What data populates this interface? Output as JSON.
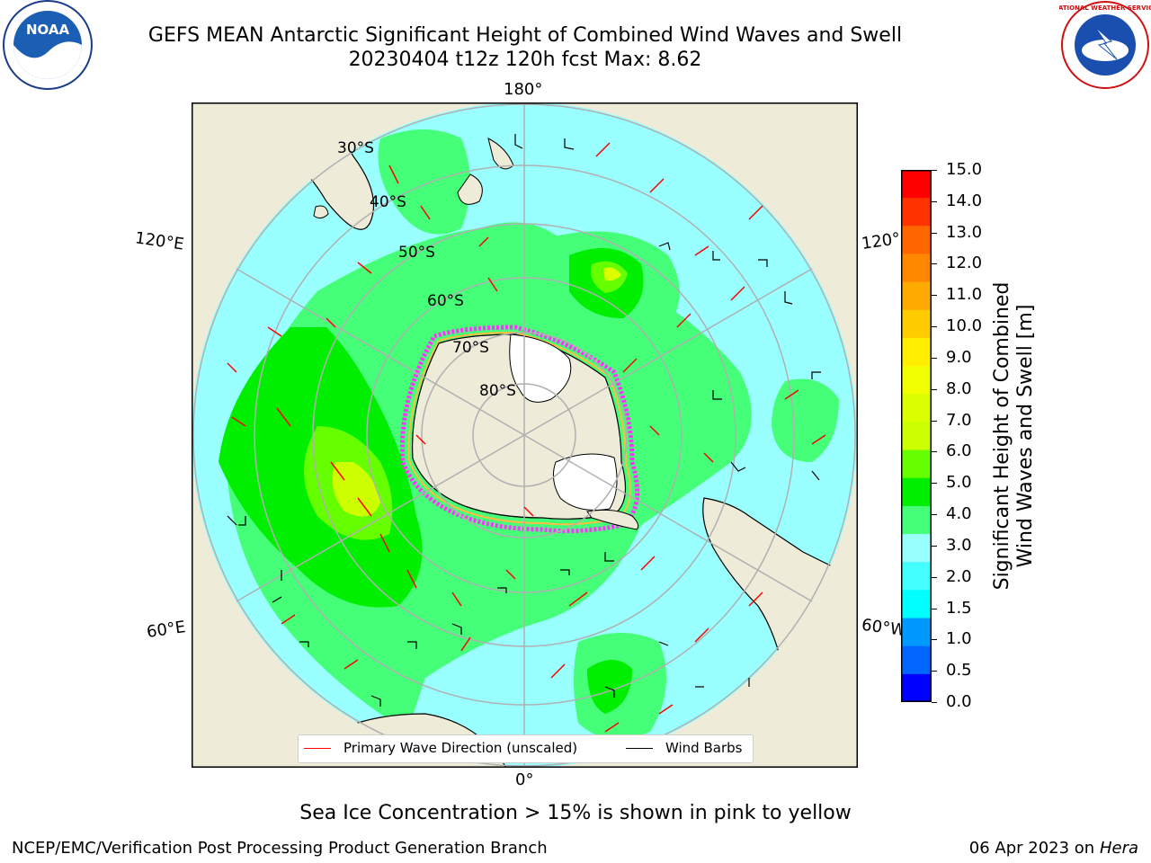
{
  "header": {
    "title": "GEFS MEAN Antarctic Significant Height of Combined Wind Waves and Swell",
    "subtitle": "20230404 t12z 120h fcst   Max: 8.62"
  },
  "map": {
    "projection": "south-polar-stereographic",
    "lon_labels": {
      "top": "180°",
      "bottom": "0°",
      "upper_left": "120°E",
      "upper_right": "120°",
      "lower_left": "60°E",
      "lower_right": "60°W"
    },
    "lat_labels": [
      "30°S",
      "40°S",
      "50°S",
      "60°S",
      "70°S",
      "80°S"
    ],
    "colors": {
      "land": "#eeebd9",
      "ice_shelf": "#ffffff",
      "grid": "#b0b0b0",
      "wave_arrow": "#ff0000",
      "wind_barb": "#000000",
      "sea_ice": "#ff33ff"
    }
  },
  "legend": {
    "primary_wave": "Primary Wave Direction (unscaled)",
    "wind_barbs": "Wind Barbs"
  },
  "colorbar": {
    "label_line1": "Significant Height of Combined",
    "label_line2": "Wind Waves and Swell [m]",
    "ticks": [
      "15.0",
      "14.0",
      "13.0",
      "12.0",
      "11.0",
      "10.0",
      "9.0",
      "8.0",
      "7.0",
      "6.0",
      "5.0",
      "4.0",
      "3.0",
      "2.0",
      "1.5",
      "1.0",
      "0.5",
      "0.0"
    ],
    "colors_top_to_bottom": [
      "#ff0000",
      "#ff3300",
      "#ff6600",
      "#ff8800",
      "#ffaa00",
      "#ffcc00",
      "#ffee00",
      "#f2ff00",
      "#dcff00",
      "#ccff00",
      "#66ff00",
      "#00ee00",
      "#44ff77",
      "#99ffff",
      "#44ffff",
      "#00ffff",
      "#0099ff",
      "#0066ff",
      "#0000ff"
    ]
  },
  "footer": {
    "note": "Sea Ice Concentration > 15% is shown in pink to yellow",
    "credit": "NCEP/EMC/Verification Post Processing Product Generation Branch",
    "date": "06 Apr 2023 on",
    "machine": "Hera"
  },
  "logos": {
    "left": "NOAA",
    "right": "NATIONAL WEATHER SERVICE"
  }
}
